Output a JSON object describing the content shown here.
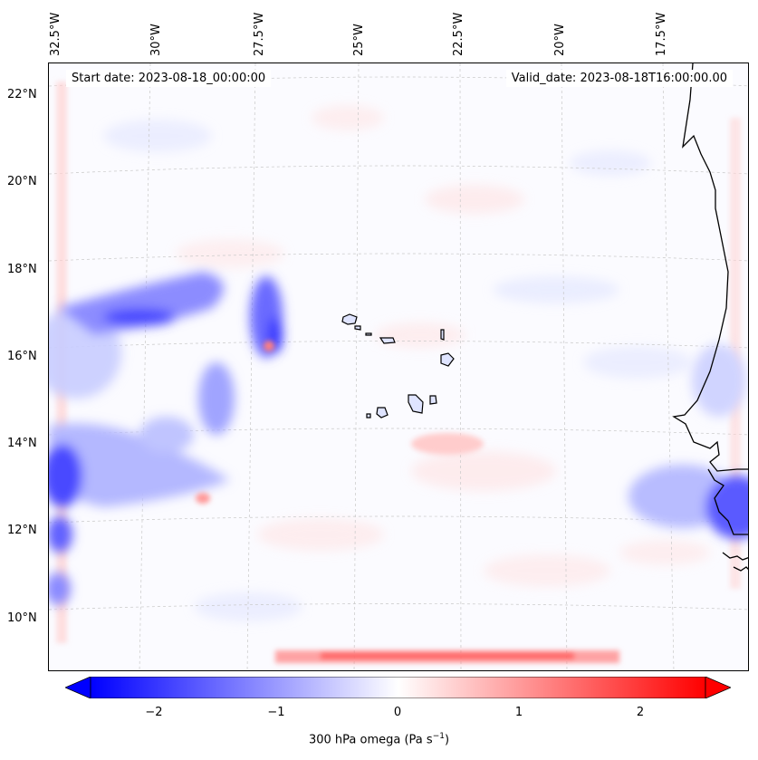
{
  "map": {
    "start_date": "Start date: 2023-08-18_00:00:00",
    "valid_date": "Valid_date: 2023-08-18T16:00:00.00",
    "lon_labels": [
      "32.5°W",
      "30°W",
      "27.5°W",
      "25°W",
      "22.5°W",
      "20°W",
      "17.5°W"
    ],
    "lat_labels": [
      "22°N",
      "20°N",
      "18°N",
      "16°N",
      "14°N",
      "12°N",
      "10°N"
    ],
    "variable": "300 hPa omega",
    "units": "Pa s",
    "units_exp": "−1"
  },
  "colorbar": {
    "ticks": [
      "−2",
      "−1",
      "0",
      "1",
      "2"
    ],
    "range": [
      -2.6,
      2.6
    ],
    "colors": {
      "low": "#0000ff",
      "mid": "#ffffff",
      "high": "#ff0000"
    },
    "extend": "both"
  },
  "colors": {
    "coast": "#000000",
    "grid": "#c8c8c8",
    "ascent": "#2a2aff",
    "descent": "#ff6a6a"
  }
}
